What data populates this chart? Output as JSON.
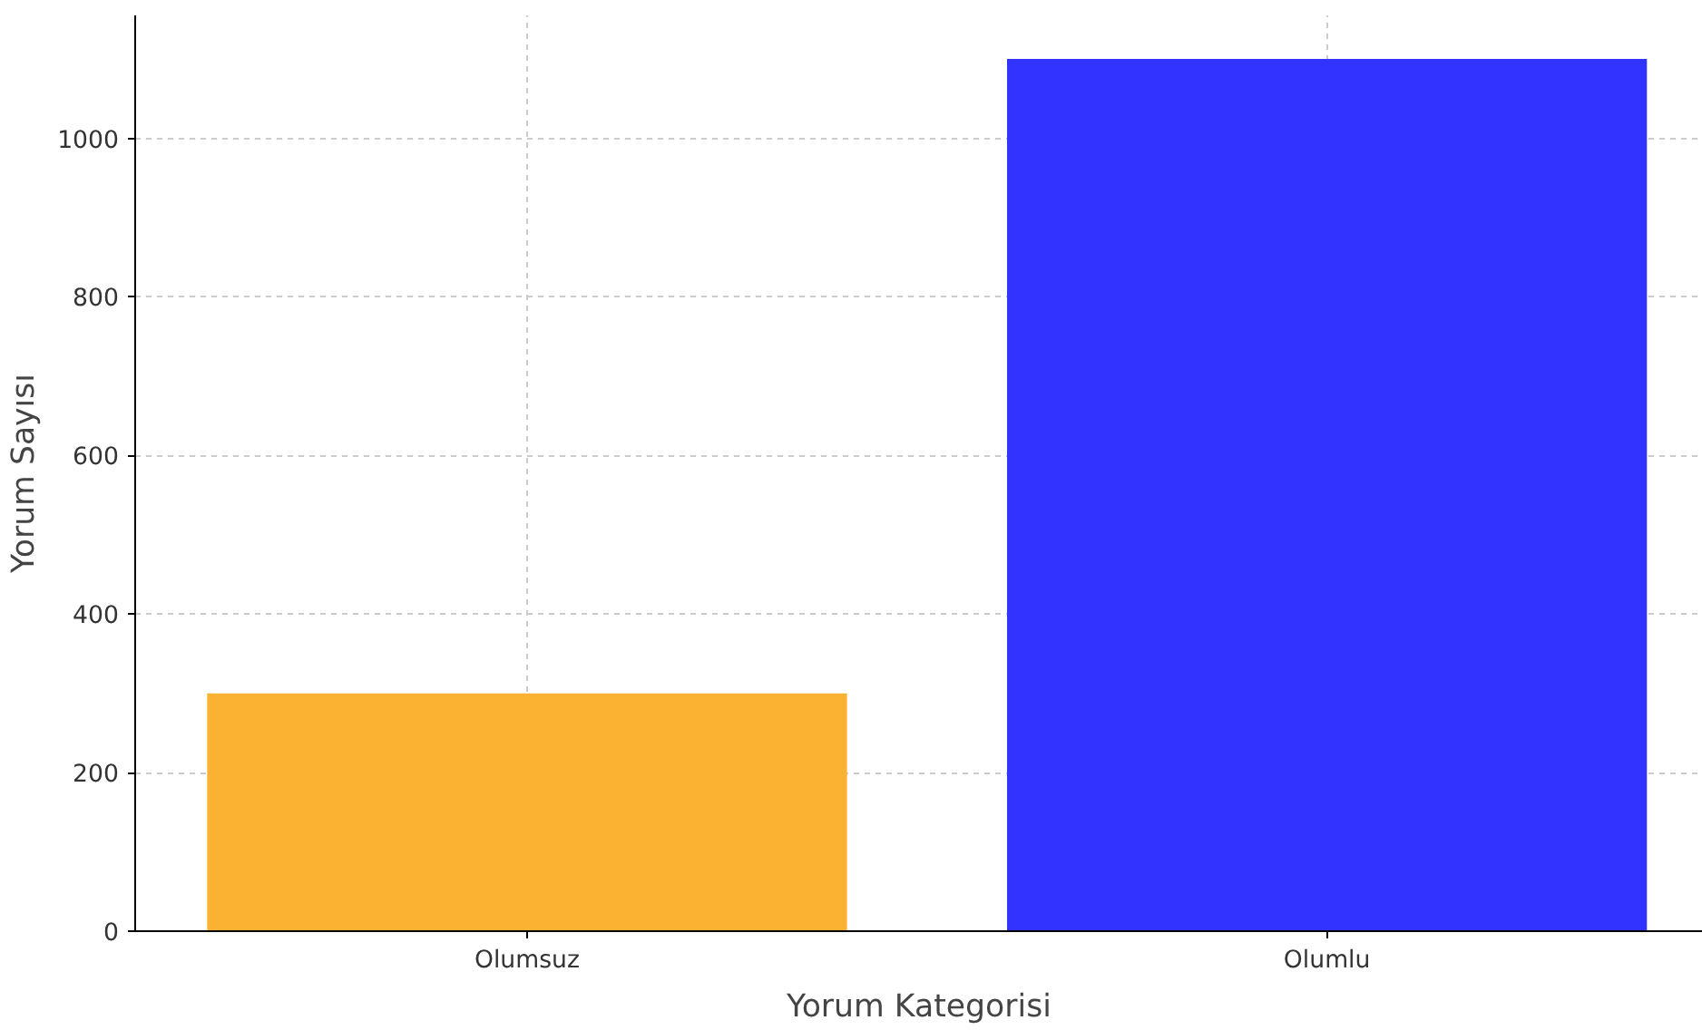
{
  "chart_data": {
    "type": "bar",
    "xlabel": "Yorum Kategorisi",
    "ylabel": "Yorum Sayısı",
    "categories": [
      "Olumsuz",
      "Olumlu"
    ],
    "values": [
      300,
      1100
    ],
    "colors": [
      "#fbb232",
      "#3333ff"
    ],
    "ylim": [
      0,
      1155
    ],
    "yticks": [
      0,
      200,
      400,
      600,
      800,
      1000
    ],
    "grid": true
  }
}
